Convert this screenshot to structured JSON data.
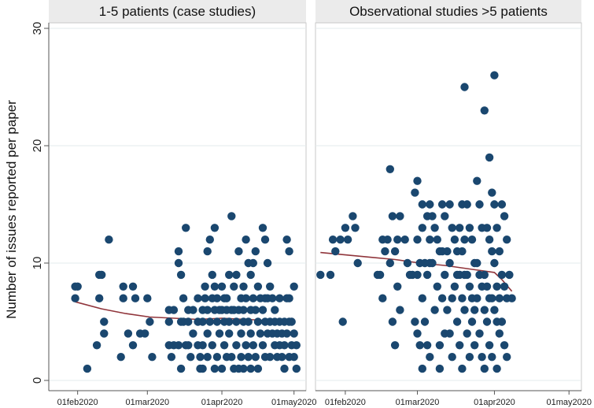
{
  "chart_data": {
    "type": "scatter",
    "ylabel": "Number of issues reported per paper",
    "ylim": [
      0,
      30
    ],
    "yticks": [
      0,
      10,
      20,
      30
    ],
    "grid": true,
    "xlim_days": [
      -12,
      95
    ],
    "xticks": [
      {
        "label": "01feb2020",
        "day": 0
      },
      {
        "label": "01mar2020",
        "day": 29
      },
      {
        "label": "01apr2020",
        "day": 60
      },
      {
        "label": "01may2020",
        "day": 90
      }
    ],
    "x_units": "days since 01feb2020",
    "point_color": "#1a476f",
    "trend_color": "#90353b",
    "panels": [
      {
        "title": "1-5 patients (case studies)",
        "points": [
          [
            -1,
            8
          ],
          [
            0,
            8
          ],
          [
            -1,
            7
          ],
          [
            4,
            1
          ],
          [
            9,
            9
          ],
          [
            10,
            9
          ],
          [
            9,
            7
          ],
          [
            8,
            3
          ],
          [
            11,
            5
          ],
          [
            11,
            4
          ],
          [
            13,
            12
          ],
          [
            18,
            2
          ],
          [
            19,
            8
          ],
          [
            19,
            7
          ],
          [
            21,
            4
          ],
          [
            23,
            8
          ],
          [
            24,
            7
          ],
          [
            23,
            3
          ],
          [
            26,
            4
          ],
          [
            28,
            4
          ],
          [
            29,
            7
          ],
          [
            30,
            5
          ],
          [
            31,
            2
          ],
          [
            38,
            6
          ],
          [
            38,
            5
          ],
          [
            38,
            3
          ],
          [
            39,
            2
          ],
          [
            40,
            6
          ],
          [
            40,
            3
          ],
          [
            42,
            11
          ],
          [
            42,
            10
          ],
          [
            42,
            3
          ],
          [
            43,
            9
          ],
          [
            43,
            5
          ],
          [
            43,
            1
          ],
          [
            44,
            7
          ],
          [
            44,
            5
          ],
          [
            45,
            13
          ],
          [
            45,
            3
          ],
          [
            46,
            6
          ],
          [
            46,
            5
          ],
          [
            46,
            3
          ],
          [
            47,
            2
          ],
          [
            48,
            6
          ],
          [
            48,
            4
          ],
          [
            50,
            7
          ],
          [
            50,
            5
          ],
          [
            50,
            3
          ],
          [
            51,
            2
          ],
          [
            51,
            1
          ],
          [
            52,
            6
          ],
          [
            52,
            5
          ],
          [
            52,
            3
          ],
          [
            52,
            1
          ],
          [
            53,
            8
          ],
          [
            53,
            7
          ],
          [
            54,
            11
          ],
          [
            54,
            6
          ],
          [
            54,
            4
          ],
          [
            54,
            2
          ],
          [
            55,
            12
          ],
          [
            55,
            5
          ],
          [
            56,
            9
          ],
          [
            56,
            7
          ],
          [
            56,
            3
          ],
          [
            57,
            13
          ],
          [
            57,
            8
          ],
          [
            57,
            6
          ],
          [
            57,
            1
          ],
          [
            58,
            7
          ],
          [
            58,
            5
          ],
          [
            58,
            2
          ],
          [
            59,
            6
          ],
          [
            59,
            4
          ],
          [
            60,
            8
          ],
          [
            60,
            6
          ],
          [
            60,
            1
          ],
          [
            61,
            7
          ],
          [
            61,
            5
          ],
          [
            61,
            3
          ],
          [
            62,
            7
          ],
          [
            62,
            6
          ],
          [
            62,
            2
          ],
          [
            63,
            9
          ],
          [
            63,
            5
          ],
          [
            63,
            4
          ],
          [
            64,
            14
          ],
          [
            64,
            6
          ],
          [
            64,
            2
          ],
          [
            65,
            8
          ],
          [
            65,
            6
          ],
          [
            65,
            1
          ],
          [
            66,
            9
          ],
          [
            66,
            5
          ],
          [
            66,
            3
          ],
          [
            67,
            11
          ],
          [
            67,
            6
          ],
          [
            67,
            1
          ],
          [
            68,
            7
          ],
          [
            68,
            4
          ],
          [
            68,
            2
          ],
          [
            69,
            8
          ],
          [
            69,
            6
          ],
          [
            69,
            5
          ],
          [
            69,
            1
          ],
          [
            70,
            12
          ],
          [
            70,
            7
          ],
          [
            70,
            3
          ],
          [
            71,
            10
          ],
          [
            71,
            5
          ],
          [
            71,
            2
          ],
          [
            72,
            9
          ],
          [
            72,
            6
          ],
          [
            72,
            4
          ],
          [
            72,
            1
          ],
          [
            73,
            10
          ],
          [
            73,
            7
          ],
          [
            73,
            3
          ],
          [
            74,
            11
          ],
          [
            74,
            6
          ],
          [
            74,
            2
          ],
          [
            75,
            8
          ],
          [
            75,
            5
          ],
          [
            75,
            1
          ],
          [
            76,
            7
          ],
          [
            76,
            4
          ],
          [
            77,
            13
          ],
          [
            77,
            6
          ],
          [
            77,
            3
          ],
          [
            78,
            12
          ],
          [
            78,
            7
          ],
          [
            78,
            5
          ],
          [
            78,
            2
          ],
          [
            79,
            10
          ],
          [
            79,
            7
          ],
          [
            79,
            4
          ],
          [
            80,
            8
          ],
          [
            80,
            5
          ],
          [
            80,
            2
          ],
          [
            81,
            7
          ],
          [
            81,
            4
          ],
          [
            82,
            6
          ],
          [
            82,
            5
          ],
          [
            82,
            3
          ],
          [
            83,
            4
          ],
          [
            83,
            2
          ],
          [
            84,
            7
          ],
          [
            84,
            5
          ],
          [
            84,
            3
          ],
          [
            85,
            4
          ],
          [
            85,
            2
          ],
          [
            86,
            5
          ],
          [
            86,
            3
          ],
          [
            86,
            1
          ],
          [
            87,
            12
          ],
          [
            87,
            7
          ],
          [
            87,
            4
          ],
          [
            88,
            11
          ],
          [
            88,
            7
          ],
          [
            88,
            5
          ],
          [
            88,
            2
          ],
          [
            89,
            5
          ],
          [
            89,
            3
          ],
          [
            90,
            8
          ],
          [
            90,
            4
          ],
          [
            90,
            2
          ],
          [
            91,
            3
          ],
          [
            91,
            1
          ]
        ],
        "trend": [
          [
            -1,
            6.7
          ],
          [
            10,
            6.1
          ],
          [
            20,
            5.7
          ],
          [
            30,
            5.4
          ],
          [
            40,
            5.3
          ],
          [
            50,
            5.2
          ],
          [
            60,
            5.3
          ],
          [
            70,
            5.2
          ],
          [
            80,
            5.1
          ],
          [
            90,
            5.0
          ]
        ]
      },
      {
        "title": "Observational studies >5 patients",
        "points": [
          [
            -10,
            9
          ],
          [
            -6,
            9
          ],
          [
            -5,
            12
          ],
          [
            -4,
            11
          ],
          [
            -2,
            12
          ],
          [
            -1,
            5
          ],
          [
            0,
            13
          ],
          [
            1,
            12
          ],
          [
            3,
            14
          ],
          [
            4,
            13
          ],
          [
            5,
            10
          ],
          [
            13,
            9
          ],
          [
            14,
            9
          ],
          [
            15,
            7
          ],
          [
            15,
            12
          ],
          [
            16,
            11
          ],
          [
            17,
            12
          ],
          [
            18,
            18
          ],
          [
            18,
            10
          ],
          [
            19,
            14
          ],
          [
            19,
            5
          ],
          [
            20,
            11
          ],
          [
            20,
            3
          ],
          [
            21,
            12
          ],
          [
            21,
            8
          ],
          [
            22,
            14
          ],
          [
            22,
            6
          ],
          [
            24,
            12
          ],
          [
            25,
            10
          ],
          [
            26,
            9
          ],
          [
            27,
            9
          ],
          [
            28,
            16
          ],
          [
            28,
            5
          ],
          [
            29,
            17
          ],
          [
            29,
            12
          ],
          [
            29,
            9
          ],
          [
            29,
            4
          ],
          [
            30,
            10
          ],
          [
            30,
            3
          ],
          [
            31,
            15
          ],
          [
            31,
            13
          ],
          [
            31,
            7
          ],
          [
            31,
            1
          ],
          [
            32,
            10
          ],
          [
            32,
            5
          ],
          [
            33,
            14
          ],
          [
            33,
            9
          ],
          [
            33,
            3
          ],
          [
            34,
            15
          ],
          [
            34,
            12
          ],
          [
            34,
            10
          ],
          [
            34,
            2
          ],
          [
            35,
            14
          ],
          [
            35,
            10
          ],
          [
            36,
            13
          ],
          [
            36,
            6
          ],
          [
            37,
            12
          ],
          [
            37,
            8
          ],
          [
            38,
            11
          ],
          [
            38,
            3
          ],
          [
            38,
            1
          ],
          [
            39,
            15
          ],
          [
            39,
            11
          ],
          [
            39,
            7
          ],
          [
            40,
            14
          ],
          [
            40,
            9
          ],
          [
            40,
            4
          ],
          [
            41,
            11
          ],
          [
            41,
            6
          ],
          [
            42,
            15
          ],
          [
            42,
            10
          ],
          [
            42,
            4
          ],
          [
            43,
            13
          ],
          [
            43,
            7
          ],
          [
            43,
            2
          ],
          [
            44,
            12
          ],
          [
            44,
            8
          ],
          [
            45,
            11
          ],
          [
            45,
            9
          ],
          [
            45,
            5
          ],
          [
            46,
            13
          ],
          [
            46,
            9
          ],
          [
            46,
            3
          ],
          [
            47,
            15
          ],
          [
            47,
            11
          ],
          [
            47,
            7
          ],
          [
            47,
            1
          ],
          [
            48,
            25
          ],
          [
            48,
            12
          ],
          [
            48,
            9
          ],
          [
            48,
            6
          ],
          [
            49,
            15
          ],
          [
            49,
            9
          ],
          [
            49,
            4
          ],
          [
            50,
            13
          ],
          [
            50,
            8
          ],
          [
            50,
            2
          ],
          [
            51,
            12
          ],
          [
            51,
            7
          ],
          [
            51,
            5
          ],
          [
            52,
            10
          ],
          [
            52,
            6
          ],
          [
            52,
            3
          ],
          [
            53,
            17
          ],
          [
            53,
            10
          ],
          [
            53,
            7
          ],
          [
            54,
            15
          ],
          [
            54,
            9
          ],
          [
            54,
            4
          ],
          [
            55,
            13
          ],
          [
            55,
            8
          ],
          [
            55,
            2
          ],
          [
            56,
            23
          ],
          [
            56,
            9
          ],
          [
            56,
            6
          ],
          [
            56,
            1
          ],
          [
            57,
            13
          ],
          [
            57,
            8
          ],
          [
            57,
            5
          ],
          [
            58,
            19
          ],
          [
            58,
            12
          ],
          [
            58,
            7
          ],
          [
            58,
            3
          ],
          [
            59,
            16
          ],
          [
            59,
            11
          ],
          [
            59,
            7
          ],
          [
            59,
            2
          ],
          [
            60,
            26
          ],
          [
            60,
            15
          ],
          [
            60,
            10
          ],
          [
            60,
            6
          ],
          [
            61,
            13
          ],
          [
            61,
            8
          ],
          [
            61,
            5
          ],
          [
            61,
            1
          ],
          [
            62,
            11
          ],
          [
            62,
            7
          ],
          [
            62,
            4
          ],
          [
            63,
            15
          ],
          [
            63,
            9
          ],
          [
            63,
            5
          ],
          [
            64,
            14
          ],
          [
            64,
            8
          ],
          [
            64,
            3
          ],
          [
            65,
            12
          ],
          [
            65,
            7
          ],
          [
            65,
            2
          ],
          [
            66,
            9
          ],
          [
            67,
            7
          ]
        ],
        "trend": [
          [
            -10,
            10.9
          ],
          [
            0,
            10.7
          ],
          [
            10,
            10.5
          ],
          [
            20,
            10.3
          ],
          [
            30,
            10.0
          ],
          [
            40,
            9.8
          ],
          [
            50,
            9.5
          ],
          [
            60,
            9.2
          ],
          [
            63,
            8.6
          ],
          [
            67,
            7.6
          ]
        ]
      }
    ]
  }
}
